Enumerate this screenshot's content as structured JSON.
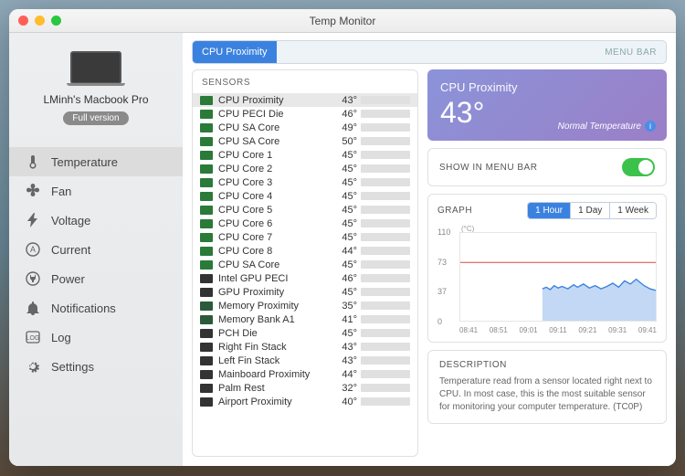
{
  "window": {
    "title": "Temp Monitor"
  },
  "device": {
    "name": "LMinh's Macbook Pro",
    "badge": "Full version"
  },
  "nav": [
    {
      "label": "Temperature",
      "icon": "thermometer",
      "active": true
    },
    {
      "label": "Fan",
      "icon": "fan"
    },
    {
      "label": "Voltage",
      "icon": "bolt"
    },
    {
      "label": "Current",
      "icon": "amp"
    },
    {
      "label": "Power",
      "icon": "plug"
    },
    {
      "label": "Notifications",
      "icon": "bell"
    },
    {
      "label": "Log",
      "icon": "log"
    },
    {
      "label": "Settings",
      "icon": "gear"
    }
  ],
  "topbar": {
    "selected": "CPU Proximity",
    "right": "MENU BAR"
  },
  "sensors_title": "SENSORS",
  "sensors": [
    {
      "name": "CPU Proximity",
      "temp": "43°",
      "pct": 38,
      "sel": true,
      "chip": "cpu"
    },
    {
      "name": "CPU PECI Die",
      "temp": "46°",
      "pct": 42,
      "chip": "cpu"
    },
    {
      "name": "CPU SA Core",
      "temp": "49°",
      "pct": 45,
      "chip": "cpu"
    },
    {
      "name": "CPU SA Core",
      "temp": "50°",
      "pct": 46,
      "chip": "cpu"
    },
    {
      "name": "CPU Core 1",
      "temp": "45°",
      "pct": 41,
      "chip": "cpu"
    },
    {
      "name": "CPU Core 2",
      "temp": "45°",
      "pct": 41,
      "chip": "cpu"
    },
    {
      "name": "CPU Core 3",
      "temp": "45°",
      "pct": 41,
      "chip": "cpu"
    },
    {
      "name": "CPU Core 4",
      "temp": "45°",
      "pct": 41,
      "chip": "cpu"
    },
    {
      "name": "CPU Core 5",
      "temp": "45°",
      "pct": 41,
      "chip": "cpu"
    },
    {
      "name": "CPU Core 6",
      "temp": "45°",
      "pct": 41,
      "chip": "cpu"
    },
    {
      "name": "CPU Core 7",
      "temp": "45°",
      "pct": 41,
      "chip": "cpu"
    },
    {
      "name": "CPU Core 8",
      "temp": "44°",
      "pct": 40,
      "chip": "cpu"
    },
    {
      "name": "CPU SA Core",
      "temp": "45°",
      "pct": 41,
      "chip": "cpu"
    },
    {
      "name": "Intel GPU PECI",
      "temp": "46°",
      "pct": 42,
      "chip": "dark"
    },
    {
      "name": "GPU Proximity",
      "temp": "45°",
      "pct": 41,
      "chip": "dark"
    },
    {
      "name": "Memory Proximity",
      "temp": "35°",
      "pct": 32,
      "chip": "mem"
    },
    {
      "name": "Memory Bank A1",
      "temp": "41°",
      "pct": 37,
      "chip": "mem"
    },
    {
      "name": "PCH Die",
      "temp": "45°",
      "pct": 41,
      "chip": "dark"
    },
    {
      "name": "Right Fin Stack",
      "temp": "43°",
      "pct": 39,
      "chip": "dark"
    },
    {
      "name": "Left Fin Stack",
      "temp": "43°",
      "pct": 39,
      "chip": "dark"
    },
    {
      "name": "Mainboard Proximity",
      "temp": "44°",
      "pct": 40,
      "chip": "dark"
    },
    {
      "name": "Palm Rest",
      "temp": "32°",
      "pct": 29,
      "chip": "dark"
    },
    {
      "name": "Airport Proximity",
      "temp": "40°",
      "pct": 36,
      "chip": "dark"
    }
  ],
  "hero": {
    "name": "CPU Proximity",
    "temp": "43°",
    "status": "Normal Temperature"
  },
  "menubar": {
    "label": "SHOW IN MENU BAR",
    "on": true
  },
  "graph": {
    "title": "GRAPH",
    "unit": "(°C)",
    "ranges": [
      "1 Hour",
      "1 Day",
      "1 Week"
    ],
    "active_range": 0,
    "y_ticks": [
      110,
      73,
      37,
      0
    ],
    "x_ticks": [
      "08:41",
      "08:51",
      "09:01",
      "09:11",
      "09:21",
      "09:31",
      "09:41"
    ],
    "threshold_y": 73,
    "threshold_color": "#d9484a",
    "series_color": "#3b82e0",
    "fill_color": "#a8c7ef",
    "background": "#ffffff",
    "grid_color": "#eeeeee",
    "ylim": [
      0,
      110
    ],
    "data": [
      [
        0.42,
        40
      ],
      [
        0.44,
        42
      ],
      [
        0.46,
        39
      ],
      [
        0.48,
        44
      ],
      [
        0.5,
        41
      ],
      [
        0.52,
        43
      ],
      [
        0.55,
        40
      ],
      [
        0.58,
        45
      ],
      [
        0.6,
        42
      ],
      [
        0.63,
        46
      ],
      [
        0.66,
        41
      ],
      [
        0.69,
        44
      ],
      [
        0.72,
        40
      ],
      [
        0.75,
        43
      ],
      [
        0.78,
        47
      ],
      [
        0.81,
        42
      ],
      [
        0.84,
        50
      ],
      [
        0.87,
        46
      ],
      [
        0.9,
        52
      ],
      [
        0.92,
        48
      ],
      [
        0.94,
        44
      ],
      [
        0.97,
        40
      ],
      [
        1.0,
        38
      ]
    ]
  },
  "description": {
    "title": "DESCRIPTION",
    "text": "Temperature read from a sensor located right next to CPU. In most case, this is the most suitable sensor for monitoring your computer temperature. (TC0P)"
  },
  "colors": {
    "accent": "#3b82e0",
    "bar_green": "#3ac24a",
    "hero_grad_a": "#8b93d9",
    "hero_grad_b": "#9b7fc7"
  }
}
